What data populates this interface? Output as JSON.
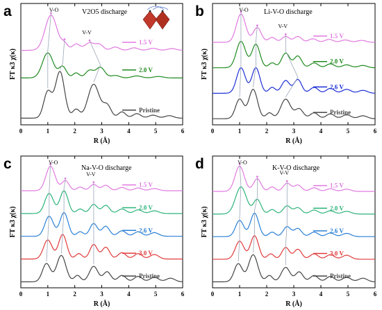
{
  "chart_data": [
    {
      "panel": "a",
      "type": "line",
      "title": "V2O5 discharge",
      "xlabel": "R (Å)",
      "ylabel": "FT κ3 χ(κ)",
      "xlim": [
        0,
        6
      ],
      "xticks": [
        "0",
        "1",
        "2",
        "3",
        "4",
        "5",
        "6"
      ],
      "annotations": [
        "V-O",
        "V-V"
      ],
      "inset": "VO6 octahedra structure",
      "series": [
        {
          "name": "1.5 V",
          "color": "#e07ae0",
          "offset": 2.7,
          "peaks": [
            [
              1.12,
              1.4,
              0.22
            ],
            [
              1.62,
              0.25,
              0.12
            ],
            [
              2.05,
              0.25,
              0.14
            ],
            [
              2.55,
              0.3,
              0.18
            ],
            [
              2.92,
              0.22,
              0.14
            ],
            [
              3.5,
              0.13,
              0.15
            ],
            [
              4.2,
              0.1,
              0.15
            ],
            [
              4.9,
              0.08,
              0.16
            ],
            [
              5.6,
              0.07,
              0.16
            ]
          ]
        },
        {
          "name": "2.0 V",
          "color": "#1e8a1e",
          "offset": 1.6,
          "peaks": [
            [
              1.0,
              1.0,
              0.2
            ],
            [
              1.55,
              0.45,
              0.14
            ],
            [
              2.05,
              0.2,
              0.12
            ],
            [
              2.55,
              0.3,
              0.15
            ],
            [
              2.95,
              0.42,
              0.16
            ],
            [
              3.5,
              0.1,
              0.16
            ],
            [
              4.3,
              0.08,
              0.18
            ],
            [
              5.1,
              0.06,
              0.18
            ]
          ]
        },
        {
          "name": "Pristine",
          "color": "#444444",
          "offset": 0.0,
          "peaks": [
            [
              1.0,
              1.05,
              0.15
            ],
            [
              1.45,
              1.85,
              0.17
            ],
            [
              2.05,
              0.35,
              0.13
            ],
            [
              2.7,
              1.35,
              0.21
            ],
            [
              3.2,
              0.5,
              0.15
            ],
            [
              3.75,
              0.25,
              0.14
            ],
            [
              4.3,
              0.18,
              0.15
            ],
            [
              4.9,
              0.12,
              0.16
            ],
            [
              5.5,
              0.1,
              0.16
            ]
          ]
        }
      ]
    },
    {
      "panel": "b",
      "type": "line",
      "title": "Li-V-O discharge",
      "xlabel": "R (Å)",
      "ylabel": "FT κ3 χ(κ)",
      "xlim": [
        0,
        6
      ],
      "xticks": [
        "0",
        "1",
        "2",
        "3",
        "4",
        "5",
        "6"
      ],
      "annotations": [
        "V-O",
        "V-V"
      ],
      "series": [
        {
          "name": "1.5 V",
          "color": "#e07ae0",
          "offset": 3.9,
          "peaks": [
            [
              1.05,
              1.45,
              0.17
            ],
            [
              1.65,
              0.75,
              0.15
            ],
            [
              2.2,
              0.25,
              0.13
            ],
            [
              2.7,
              0.3,
              0.14
            ],
            [
              3.15,
              0.3,
              0.14
            ],
            [
              3.7,
              0.18,
              0.15
            ],
            [
              4.3,
              0.15,
              0.15
            ],
            [
              4.9,
              0.12,
              0.16
            ],
            [
              5.5,
              0.1,
              0.16
            ]
          ]
        },
        {
          "name": "2.0 V",
          "color": "#1e8a1e",
          "offset": 2.6,
          "peaks": [
            [
              1.05,
              1.35,
              0.17
            ],
            [
              1.6,
              1.2,
              0.15
            ],
            [
              2.2,
              0.25,
              0.12
            ],
            [
              2.7,
              0.75,
              0.15
            ],
            [
              3.15,
              0.6,
              0.14
            ],
            [
              3.75,
              0.25,
              0.15
            ],
            [
              4.35,
              0.2,
              0.15
            ],
            [
              4.95,
              0.15,
              0.16
            ],
            [
              5.55,
              0.12,
              0.16
            ]
          ]
        },
        {
          "name": "2.6 V",
          "color": "#1c2fd6",
          "offset": 1.3,
          "peaks": [
            [
              1.05,
              1.3,
              0.16
            ],
            [
              1.6,
              1.3,
              0.15
            ],
            [
              2.2,
              0.3,
              0.12
            ],
            [
              2.7,
              0.65,
              0.15
            ],
            [
              3.15,
              0.7,
              0.14
            ],
            [
              3.75,
              0.3,
              0.15
            ],
            [
              4.35,
              0.25,
              0.15
            ],
            [
              4.95,
              0.2,
              0.16
            ],
            [
              5.55,
              0.15,
              0.16
            ]
          ]
        },
        {
          "name": "Pristine",
          "color": "#444444",
          "offset": 0.0,
          "peaks": [
            [
              1.0,
              1.0,
              0.15
            ],
            [
              1.5,
              1.5,
              0.16
            ],
            [
              2.1,
              0.3,
              0.12
            ],
            [
              2.7,
              1.0,
              0.18
            ],
            [
              3.2,
              0.5,
              0.15
            ],
            [
              3.75,
              0.3,
              0.15
            ],
            [
              4.35,
              0.25,
              0.15
            ],
            [
              4.95,
              0.2,
              0.16
            ],
            [
              5.55,
              0.15,
              0.16
            ]
          ]
        }
      ]
    },
    {
      "panel": "c",
      "type": "line",
      "title": "Na-V-O discharge",
      "xlabel": "R (Å)",
      "ylabel": "FT κ3 χ(κ)",
      "xlim": [
        0,
        6
      ],
      "xticks": [
        "0",
        "1",
        "2",
        "3",
        "4",
        "5",
        "6"
      ],
      "annotations": [
        "V-O",
        "V-V"
      ],
      "series": [
        {
          "name": "1.5 V",
          "color": "#e07ae0",
          "offset": 5.0,
          "peaks": [
            [
              1.1,
              1.35,
              0.17
            ],
            [
              1.65,
              0.55,
              0.14
            ],
            [
              2.2,
              0.2,
              0.12
            ],
            [
              2.7,
              0.35,
              0.14
            ],
            [
              3.15,
              0.3,
              0.14
            ],
            [
              3.75,
              0.18,
              0.15
            ],
            [
              4.35,
              0.15,
              0.15
            ],
            [
              4.95,
              0.12,
              0.16
            ]
          ]
        },
        {
          "name": "2.0 V",
          "color": "#2db37a",
          "offset": 3.75,
          "peaks": [
            [
              1.05,
              1.1,
              0.16
            ],
            [
              1.6,
              1.25,
              0.15
            ],
            [
              2.2,
              0.25,
              0.12
            ],
            [
              2.7,
              0.5,
              0.14
            ],
            [
              3.15,
              0.45,
              0.14
            ],
            [
              3.75,
              0.25,
              0.15
            ],
            [
              4.35,
              0.2,
              0.15
            ],
            [
              4.95,
              0.15,
              0.16
            ]
          ]
        },
        {
          "name": "2.6 V",
          "color": "#2a7fd4",
          "offset": 2.5,
          "peaks": [
            [
              1.05,
              1.1,
              0.16
            ],
            [
              1.6,
              1.3,
              0.15
            ],
            [
              2.2,
              0.25,
              0.12
            ],
            [
              2.7,
              0.7,
              0.14
            ],
            [
              3.15,
              0.55,
              0.14
            ],
            [
              3.75,
              0.3,
              0.15
            ],
            [
              4.35,
              0.25,
              0.15
            ],
            [
              4.95,
              0.2,
              0.16
            ]
          ]
        },
        {
          "name": "3.0 V",
          "color": "#e03a3a",
          "offset": 1.25,
          "peaks": [
            [
              1.0,
              1.05,
              0.16
            ],
            [
              1.55,
              1.35,
              0.15
            ],
            [
              2.15,
              0.3,
              0.12
            ],
            [
              2.7,
              0.8,
              0.14
            ],
            [
              3.15,
              0.65,
              0.14
            ],
            [
              3.75,
              0.35,
              0.15
            ],
            [
              4.35,
              0.3,
              0.15
            ],
            [
              4.95,
              0.25,
              0.16
            ]
          ]
        },
        {
          "name": "Pristine",
          "color": "#444444",
          "offset": 0.0,
          "peaks": [
            [
              0.95,
              1.0,
              0.15
            ],
            [
              1.5,
              1.45,
              0.17
            ],
            [
              2.1,
              0.35,
              0.12
            ],
            [
              2.7,
              0.85,
              0.16
            ],
            [
              3.2,
              0.55,
              0.14
            ],
            [
              3.75,
              0.35,
              0.15
            ],
            [
              4.35,
              0.3,
              0.15
            ],
            [
              4.95,
              0.25,
              0.16
            ],
            [
              5.55,
              0.2,
              0.16
            ]
          ]
        }
      ]
    },
    {
      "panel": "d",
      "type": "line",
      "title": "K-V-O discharge",
      "xlabel": "R (Å)",
      "ylabel": "FT κ3 χ(κ)",
      "xlim": [
        0,
        6
      ],
      "xticks": [
        "0",
        "1",
        "2",
        "3",
        "4",
        "5",
        "6"
      ],
      "annotations": [
        "V-O",
        "V-V"
      ],
      "series": [
        {
          "name": "1.5 V",
          "color": "#e07ae0",
          "offset": 5.0,
          "peaks": [
            [
              1.0,
              1.4,
              0.17
            ],
            [
              1.65,
              0.7,
              0.14
            ],
            [
              2.2,
              0.25,
              0.12
            ],
            [
              2.75,
              0.45,
              0.14
            ],
            [
              3.15,
              0.35,
              0.14
            ],
            [
              3.75,
              0.2,
              0.15
            ],
            [
              4.35,
              0.15,
              0.15
            ],
            [
              4.95,
              0.12,
              0.16
            ]
          ]
        },
        {
          "name": "2.0 V",
          "color": "#2db37a",
          "offset": 3.75,
          "peaks": [
            [
              1.05,
              1.5,
              0.2
            ],
            [
              1.65,
              0.8,
              0.14
            ],
            [
              2.2,
              0.25,
              0.12
            ],
            [
              2.75,
              0.45,
              0.14
            ],
            [
              3.15,
              0.35,
              0.14
            ],
            [
              3.75,
              0.22,
              0.15
            ],
            [
              4.35,
              0.18,
              0.15
            ],
            [
              4.95,
              0.15,
              0.16
            ]
          ]
        },
        {
          "name": "2.6 V",
          "color": "#2a7fd4",
          "offset": 2.5,
          "peaks": [
            [
              1.0,
              0.9,
              0.15
            ],
            [
              1.55,
              1.3,
              0.15
            ],
            [
              2.2,
              0.25,
              0.12
            ],
            [
              2.75,
              0.55,
              0.14
            ],
            [
              3.15,
              0.45,
              0.14
            ],
            [
              3.75,
              0.25,
              0.15
            ],
            [
              4.35,
              0.2,
              0.15
            ],
            [
              4.95,
              0.18,
              0.16
            ]
          ]
        },
        {
          "name": "3.0 V",
          "color": "#e03a3a",
          "offset": 1.25,
          "peaks": [
            [
              1.0,
              1.0,
              0.16
            ],
            [
              1.55,
              1.3,
              0.15
            ],
            [
              2.15,
              0.3,
              0.12
            ],
            [
              2.7,
              0.65,
              0.14
            ],
            [
              3.15,
              0.55,
              0.14
            ],
            [
              3.75,
              0.3,
              0.15
            ],
            [
              4.35,
              0.25,
              0.15
            ],
            [
              4.95,
              0.22,
              0.16
            ]
          ]
        },
        {
          "name": "Pristine",
          "color": "#444444",
          "offset": 0.0,
          "peaks": [
            [
              0.95,
              1.0,
              0.15
            ],
            [
              1.5,
              1.5,
              0.17
            ],
            [
              2.1,
              0.35,
              0.12
            ],
            [
              2.7,
              0.8,
              0.16
            ],
            [
              3.2,
              0.55,
              0.14
            ],
            [
              3.75,
              0.35,
              0.15
            ],
            [
              4.35,
              0.3,
              0.15
            ],
            [
              4.95,
              0.25,
              0.16
            ],
            [
              5.55,
              0.2,
              0.16
            ]
          ]
        }
      ]
    }
  ]
}
